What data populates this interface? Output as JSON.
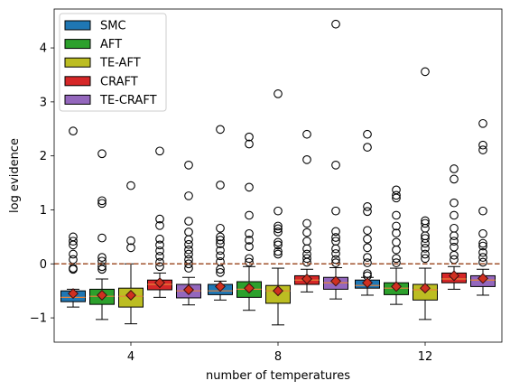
{
  "chart_data": {
    "type": "box",
    "xlabel": "number of temperatures",
    "ylabel": "log evidence",
    "ylim": [
      -1.45,
      4.72
    ],
    "yticks": [
      -1,
      0,
      1,
      2,
      3,
      4
    ],
    "groups": [
      "4",
      "8",
      "12"
    ],
    "reference_line": {
      "y": 0,
      "style": "dashed",
      "color": "#a0522d"
    },
    "legend": {
      "placement": "top-left"
    },
    "series": [
      {
        "name": "SMC",
        "color": "#1f77b4",
        "boxes": [
          {
            "q1": -0.7,
            "median": -0.62,
            "q3": -0.5,
            "whislo": -0.8,
            "whishi": -0.47,
            "mean": -0.55,
            "fliers": [
              2.46,
              0.5,
              0.42,
              0.35,
              0.18,
              0.08,
              -0.08,
              -0.1
            ]
          },
          {
            "q1": -0.57,
            "median": -0.5,
            "q3": -0.38,
            "whislo": -0.67,
            "whishi": -0.32,
            "mean": -0.42,
            "fliers": [
              2.49,
              1.46,
              0.66,
              0.5,
              0.44,
              0.37,
              0.25,
              0.15,
              0.04,
              -0.1,
              -0.16
            ]
          },
          {
            "q1": -0.45,
            "median": -0.4,
            "q3": -0.3,
            "whislo": -0.58,
            "whishi": -0.25,
            "mean": -0.35,
            "fliers": [
              2.4,
              2.16,
              1.06,
              0.97,
              0.62,
              0.46,
              0.3,
              0.12,
              0.02,
              -0.18,
              -0.22
            ]
          }
        ]
      },
      {
        "name": "AFT",
        "color": "#2ca02c",
        "boxes": [
          {
            "q1": -0.75,
            "median": -0.6,
            "q3": -0.47,
            "whislo": -1.03,
            "whishi": -0.28,
            "mean": -0.58,
            "fliers": [
              2.04,
              1.17,
              1.12,
              0.48,
              0.12,
              0.05,
              -0.05,
              -0.1
            ]
          },
          {
            "q1": -0.62,
            "median": -0.47,
            "q3": -0.33,
            "whislo": -0.86,
            "whishi": -0.05,
            "mean": -0.45,
            "fliers": [
              2.35,
              2.22,
              1.42,
              0.9,
              0.56,
              0.44,
              0.32,
              0.1,
              0.03
            ]
          },
          {
            "q1": -0.57,
            "median": -0.45,
            "q3": -0.35,
            "whislo": -0.75,
            "whishi": -0.08,
            "mean": -0.42,
            "fliers": [
              1.37,
              1.27,
              1.22,
              0.9,
              0.7,
              0.57,
              0.4,
              0.26,
              0.1,
              0.02
            ]
          }
        ]
      },
      {
        "name": "TE-AFT",
        "color": "#bcbd22",
        "boxes": [
          {
            "q1": -0.8,
            "median": -0.6,
            "q3": -0.45,
            "whislo": -1.11,
            "whishi": 0.0,
            "mean": -0.58,
            "fliers": [
              1.45,
              0.43,
              0.3
            ]
          },
          {
            "q1": -0.73,
            "median": -0.5,
            "q3": -0.4,
            "whislo": -1.13,
            "whishi": -0.08,
            "mean": -0.5,
            "fliers": [
              3.15,
              0.98,
              0.7,
              0.65,
              0.59,
              0.4,
              0.35,
              0.23,
              0.18
            ]
          },
          {
            "q1": -0.67,
            "median": -0.48,
            "q3": -0.38,
            "whislo": -1.03,
            "whishi": -0.08,
            "mean": -0.45,
            "fliers": [
              3.56,
              0.8,
              0.75,
              0.66,
              0.52,
              0.47,
              0.38,
              0.29,
              0.18,
              0.1
            ]
          }
        ]
      },
      {
        "name": "CRAFT",
        "color": "#d62728",
        "boxes": [
          {
            "q1": -0.48,
            "median": -0.38,
            "q3": -0.3,
            "whislo": -0.62,
            "whishi": -0.17,
            "mean": -0.35,
            "fliers": [
              2.09,
              0.83,
              0.71,
              0.46,
              0.35,
              0.24,
              0.14,
              0.03,
              -0.05
            ]
          },
          {
            "q1": -0.38,
            "median": -0.3,
            "q3": -0.22,
            "whislo": -0.52,
            "whishi": -0.1,
            "mean": -0.28,
            "fliers": [
              2.4,
              1.93,
              0.75,
              0.58,
              0.42,
              0.28,
              0.18,
              0.1,
              0.03
            ]
          },
          {
            "q1": -0.35,
            "median": -0.28,
            "q3": -0.17,
            "whislo": -0.47,
            "whishi": -0.05,
            "mean": -0.22,
            "fliers": [
              1.76,
              1.57,
              1.13,
              0.9,
              0.66,
              0.52,
              0.42,
              0.31,
              0.16,
              0.08
            ]
          }
        ]
      },
      {
        "name": "TE-CRAFT",
        "color": "#9467bd",
        "boxes": [
          {
            "q1": -0.63,
            "median": -0.5,
            "q3": -0.38,
            "whislo": -0.76,
            "whishi": -0.25,
            "mean": -0.48,
            "fliers": [
              1.83,
              1.26,
              0.79,
              0.59,
              0.45,
              0.36,
              0.26,
              0.18,
              0.08,
              0.0,
              -0.08
            ]
          },
          {
            "q1": -0.47,
            "median": -0.35,
            "q3": -0.25,
            "whislo": -0.65,
            "whishi": -0.07,
            "mean": -0.32,
            "fliers": [
              4.44,
              1.83,
              0.98,
              0.6,
              0.49,
              0.42,
              0.28,
              0.19,
              0.08,
              0.02
            ]
          },
          {
            "q1": -0.42,
            "median": -0.3,
            "q3": -0.22,
            "whislo": -0.58,
            "whishi": -0.1,
            "mean": -0.27,
            "fliers": [
              2.6,
              2.2,
              2.11,
              0.98,
              0.56,
              0.38,
              0.33,
              0.21,
              0.12,
              0.03
            ]
          }
        ]
      }
    ]
  }
}
